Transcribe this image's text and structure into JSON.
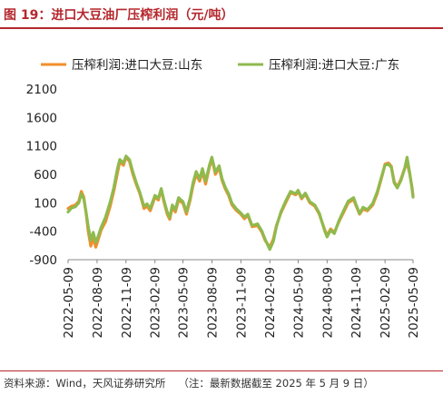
{
  "header": {
    "title": "图 19：进口大豆油厂压榨利润（元/吨）"
  },
  "footer": {
    "source": "资料来源：Wind，天风证券研究所",
    "note": "（注：最新数据截至 2025 年 5 月 9 日）"
  },
  "colors": {
    "title": "#b5272d",
    "series_shandong": "#f28e2b",
    "series_guangdong": "#8fba4e"
  },
  "chart_data": {
    "type": "line",
    "ylim": [
      -900,
      2100
    ],
    "yticks": [
      2100,
      1600,
      1100,
      600,
      100,
      -400,
      -900
    ],
    "x_tick_labels": [
      "2022-05-09",
      "2022-08-09",
      "2022-11-09",
      "2023-02-09",
      "2023-05-09",
      "2023-08-09",
      "2023-11-09",
      "2024-02-09",
      "2024-05-09",
      "2024-08-09",
      "2024-11-09",
      "2025-02-09",
      "2025-05-09"
    ],
    "legend_position": "top",
    "grid": false,
    "series": [
      {
        "name": "压榨利润:进口大豆:山东",
        "color": "#f28e2b",
        "points": [
          [
            "2022-05-09",
            0
          ],
          [
            "2022-05-20",
            40
          ],
          [
            "2022-06-01",
            60
          ],
          [
            "2022-06-12",
            130
          ],
          [
            "2022-06-20",
            300
          ],
          [
            "2022-06-28",
            200
          ],
          [
            "2022-07-05",
            -80
          ],
          [
            "2022-07-12",
            -400
          ],
          [
            "2022-07-20",
            -660
          ],
          [
            "2022-07-28",
            -520
          ],
          [
            "2022-08-05",
            -680
          ],
          [
            "2022-08-12",
            -560
          ],
          [
            "2022-08-22",
            -380
          ],
          [
            "2022-09-05",
            -230
          ],
          [
            "2022-09-20",
            50
          ],
          [
            "2022-10-01",
            300
          ],
          [
            "2022-10-12",
            600
          ],
          [
            "2022-10-20",
            820
          ],
          [
            "2022-11-01",
            760
          ],
          [
            "2022-11-09",
            900
          ],
          [
            "2022-11-20",
            830
          ],
          [
            "2022-12-01",
            600
          ],
          [
            "2022-12-12",
            420
          ],
          [
            "2022-12-22",
            280
          ],
          [
            "2023-01-05",
            0
          ],
          [
            "2023-01-15",
            40
          ],
          [
            "2023-01-25",
            -40
          ],
          [
            "2023-02-09",
            200
          ],
          [
            "2023-02-20",
            150
          ],
          [
            "2023-03-01",
            330
          ],
          [
            "2023-03-10",
            110
          ],
          [
            "2023-03-20",
            -100
          ],
          [
            "2023-03-28",
            -190
          ],
          [
            "2023-04-05",
            20
          ],
          [
            "2023-04-15",
            -60
          ],
          [
            "2023-04-25",
            150
          ],
          [
            "2023-05-09",
            90
          ],
          [
            "2023-05-20",
            -100
          ],
          [
            "2023-06-01",
            150
          ],
          [
            "2023-06-10",
            400
          ],
          [
            "2023-06-20",
            600
          ],
          [
            "2023-07-01",
            480
          ],
          [
            "2023-07-10",
            650
          ],
          [
            "2023-07-20",
            430
          ],
          [
            "2023-08-01",
            730
          ],
          [
            "2023-08-09",
            880
          ],
          [
            "2023-08-20",
            600
          ],
          [
            "2023-09-01",
            720
          ],
          [
            "2023-09-10",
            500
          ],
          [
            "2023-09-20",
            350
          ],
          [
            "2023-10-01",
            230
          ],
          [
            "2023-10-12",
            60
          ],
          [
            "2023-10-25",
            -30
          ],
          [
            "2023-11-09",
            -100
          ],
          [
            "2023-11-20",
            -180
          ],
          [
            "2023-12-01",
            -120
          ],
          [
            "2023-12-15",
            -320
          ],
          [
            "2024-01-01",
            -300
          ],
          [
            "2024-01-15",
            -420
          ],
          [
            "2024-01-25",
            -560
          ],
          [
            "2024-02-09",
            -680
          ],
          [
            "2024-02-20",
            -540
          ],
          [
            "2024-03-01",
            -300
          ],
          [
            "2024-03-15",
            -80
          ],
          [
            "2024-04-01",
            120
          ],
          [
            "2024-04-15",
            280
          ],
          [
            "2024-05-01",
            240
          ],
          [
            "2024-05-09",
            300
          ],
          [
            "2024-05-20",
            170
          ],
          [
            "2024-06-01",
            250
          ],
          [
            "2024-06-15",
            100
          ],
          [
            "2024-07-01",
            40
          ],
          [
            "2024-07-15",
            -100
          ],
          [
            "2024-08-01",
            -370
          ],
          [
            "2024-08-09",
            -470
          ],
          [
            "2024-08-20",
            -360
          ],
          [
            "2024-09-01",
            -420
          ],
          [
            "2024-09-15",
            -240
          ],
          [
            "2024-10-01",
            -60
          ],
          [
            "2024-10-15",
            100
          ],
          [
            "2024-11-01",
            160
          ],
          [
            "2024-11-09",
            50
          ],
          [
            "2024-11-20",
            -100
          ],
          [
            "2024-12-01",
            -10
          ],
          [
            "2024-12-15",
            -40
          ],
          [
            "2025-01-01",
            60
          ],
          [
            "2025-01-15",
            260
          ],
          [
            "2025-02-01",
            600
          ],
          [
            "2025-02-09",
            780
          ],
          [
            "2025-02-20",
            800
          ],
          [
            "2025-03-01",
            740
          ],
          [
            "2025-03-10",
            470
          ],
          [
            "2025-03-20",
            380
          ],
          [
            "2025-04-01",
            520
          ],
          [
            "2025-04-12",
            700
          ],
          [
            "2025-04-20",
            800
          ],
          [
            "2025-04-28",
            620
          ],
          [
            "2025-05-05",
            400
          ],
          [
            "2025-05-09",
            230
          ]
        ]
      },
      {
        "name": "压榨利润:进口大豆:广东",
        "color": "#8fba4e",
        "points": [
          [
            "2022-05-09",
            -60
          ],
          [
            "2022-05-20",
            10
          ],
          [
            "2022-06-01",
            30
          ],
          [
            "2022-06-12",
            100
          ],
          [
            "2022-06-20",
            260
          ],
          [
            "2022-06-28",
            170
          ],
          [
            "2022-07-05",
            -60
          ],
          [
            "2022-07-12",
            -320
          ],
          [
            "2022-07-20",
            -560
          ],
          [
            "2022-07-28",
            -420
          ],
          [
            "2022-08-05",
            -600
          ],
          [
            "2022-08-12",
            -500
          ],
          [
            "2022-08-22",
            -330
          ],
          [
            "2022-09-05",
            -150
          ],
          [
            "2022-09-20",
            120
          ],
          [
            "2022-10-01",
            360
          ],
          [
            "2022-10-12",
            680
          ],
          [
            "2022-10-20",
            860
          ],
          [
            "2022-11-01",
            800
          ],
          [
            "2022-11-09",
            920
          ],
          [
            "2022-11-20",
            860
          ],
          [
            "2022-12-01",
            640
          ],
          [
            "2022-12-12",
            450
          ],
          [
            "2022-12-22",
            300
          ],
          [
            "2023-01-05",
            40
          ],
          [
            "2023-01-15",
            80
          ],
          [
            "2023-01-25",
            0
          ],
          [
            "2023-02-09",
            230
          ],
          [
            "2023-02-20",
            180
          ],
          [
            "2023-03-01",
            350
          ],
          [
            "2023-03-10",
            140
          ],
          [
            "2023-03-20",
            -60
          ],
          [
            "2023-03-28",
            -160
          ],
          [
            "2023-04-05",
            60
          ],
          [
            "2023-04-15",
            -20
          ],
          [
            "2023-04-25",
            190
          ],
          [
            "2023-05-09",
            120
          ],
          [
            "2023-05-20",
            -60
          ],
          [
            "2023-06-01",
            190
          ],
          [
            "2023-06-10",
            450
          ],
          [
            "2023-06-20",
            650
          ],
          [
            "2023-07-01",
            520
          ],
          [
            "2023-07-10",
            700
          ],
          [
            "2023-07-20",
            480
          ],
          [
            "2023-08-01",
            760
          ],
          [
            "2023-08-09",
            900
          ],
          [
            "2023-08-20",
            640
          ],
          [
            "2023-09-01",
            750
          ],
          [
            "2023-09-10",
            530
          ],
          [
            "2023-09-20",
            380
          ],
          [
            "2023-10-01",
            260
          ],
          [
            "2023-10-12",
            90
          ],
          [
            "2023-10-25",
            0
          ],
          [
            "2023-11-09",
            -80
          ],
          [
            "2023-11-20",
            -150
          ],
          [
            "2023-12-01",
            -100
          ],
          [
            "2023-12-15",
            -300
          ],
          [
            "2024-01-01",
            -270
          ],
          [
            "2024-01-15",
            -400
          ],
          [
            "2024-01-25",
            -540
          ],
          [
            "2024-02-09",
            -720
          ],
          [
            "2024-02-20",
            -580
          ],
          [
            "2024-03-01",
            -320
          ],
          [
            "2024-03-15",
            -60
          ],
          [
            "2024-04-01",
            150
          ],
          [
            "2024-04-15",
            300
          ],
          [
            "2024-05-01",
            260
          ],
          [
            "2024-05-09",
            320
          ],
          [
            "2024-05-20",
            190
          ],
          [
            "2024-06-01",
            270
          ],
          [
            "2024-06-15",
            120
          ],
          [
            "2024-07-01",
            60
          ],
          [
            "2024-07-15",
            -80
          ],
          [
            "2024-08-01",
            -390
          ],
          [
            "2024-08-09",
            -500
          ],
          [
            "2024-08-20",
            -380
          ],
          [
            "2024-09-01",
            -440
          ],
          [
            "2024-09-15",
            -220
          ],
          [
            "2024-10-01",
            -30
          ],
          [
            "2024-10-15",
            130
          ],
          [
            "2024-11-01",
            190
          ],
          [
            "2024-11-09",
            70
          ],
          [
            "2024-11-20",
            -90
          ],
          [
            "2024-12-01",
            20
          ],
          [
            "2024-12-15",
            -20
          ],
          [
            "2025-01-01",
            90
          ],
          [
            "2025-01-15",
            290
          ],
          [
            "2025-02-01",
            620
          ],
          [
            "2025-02-09",
            760
          ],
          [
            "2025-02-20",
            780
          ],
          [
            "2025-03-01",
            720
          ],
          [
            "2025-03-10",
            450
          ],
          [
            "2025-03-20",
            360
          ],
          [
            "2025-04-01",
            500
          ],
          [
            "2025-04-12",
            690
          ],
          [
            "2025-04-20",
            900
          ],
          [
            "2025-04-28",
            640
          ],
          [
            "2025-05-05",
            380
          ],
          [
            "2025-05-09",
            200
          ]
        ]
      }
    ]
  }
}
